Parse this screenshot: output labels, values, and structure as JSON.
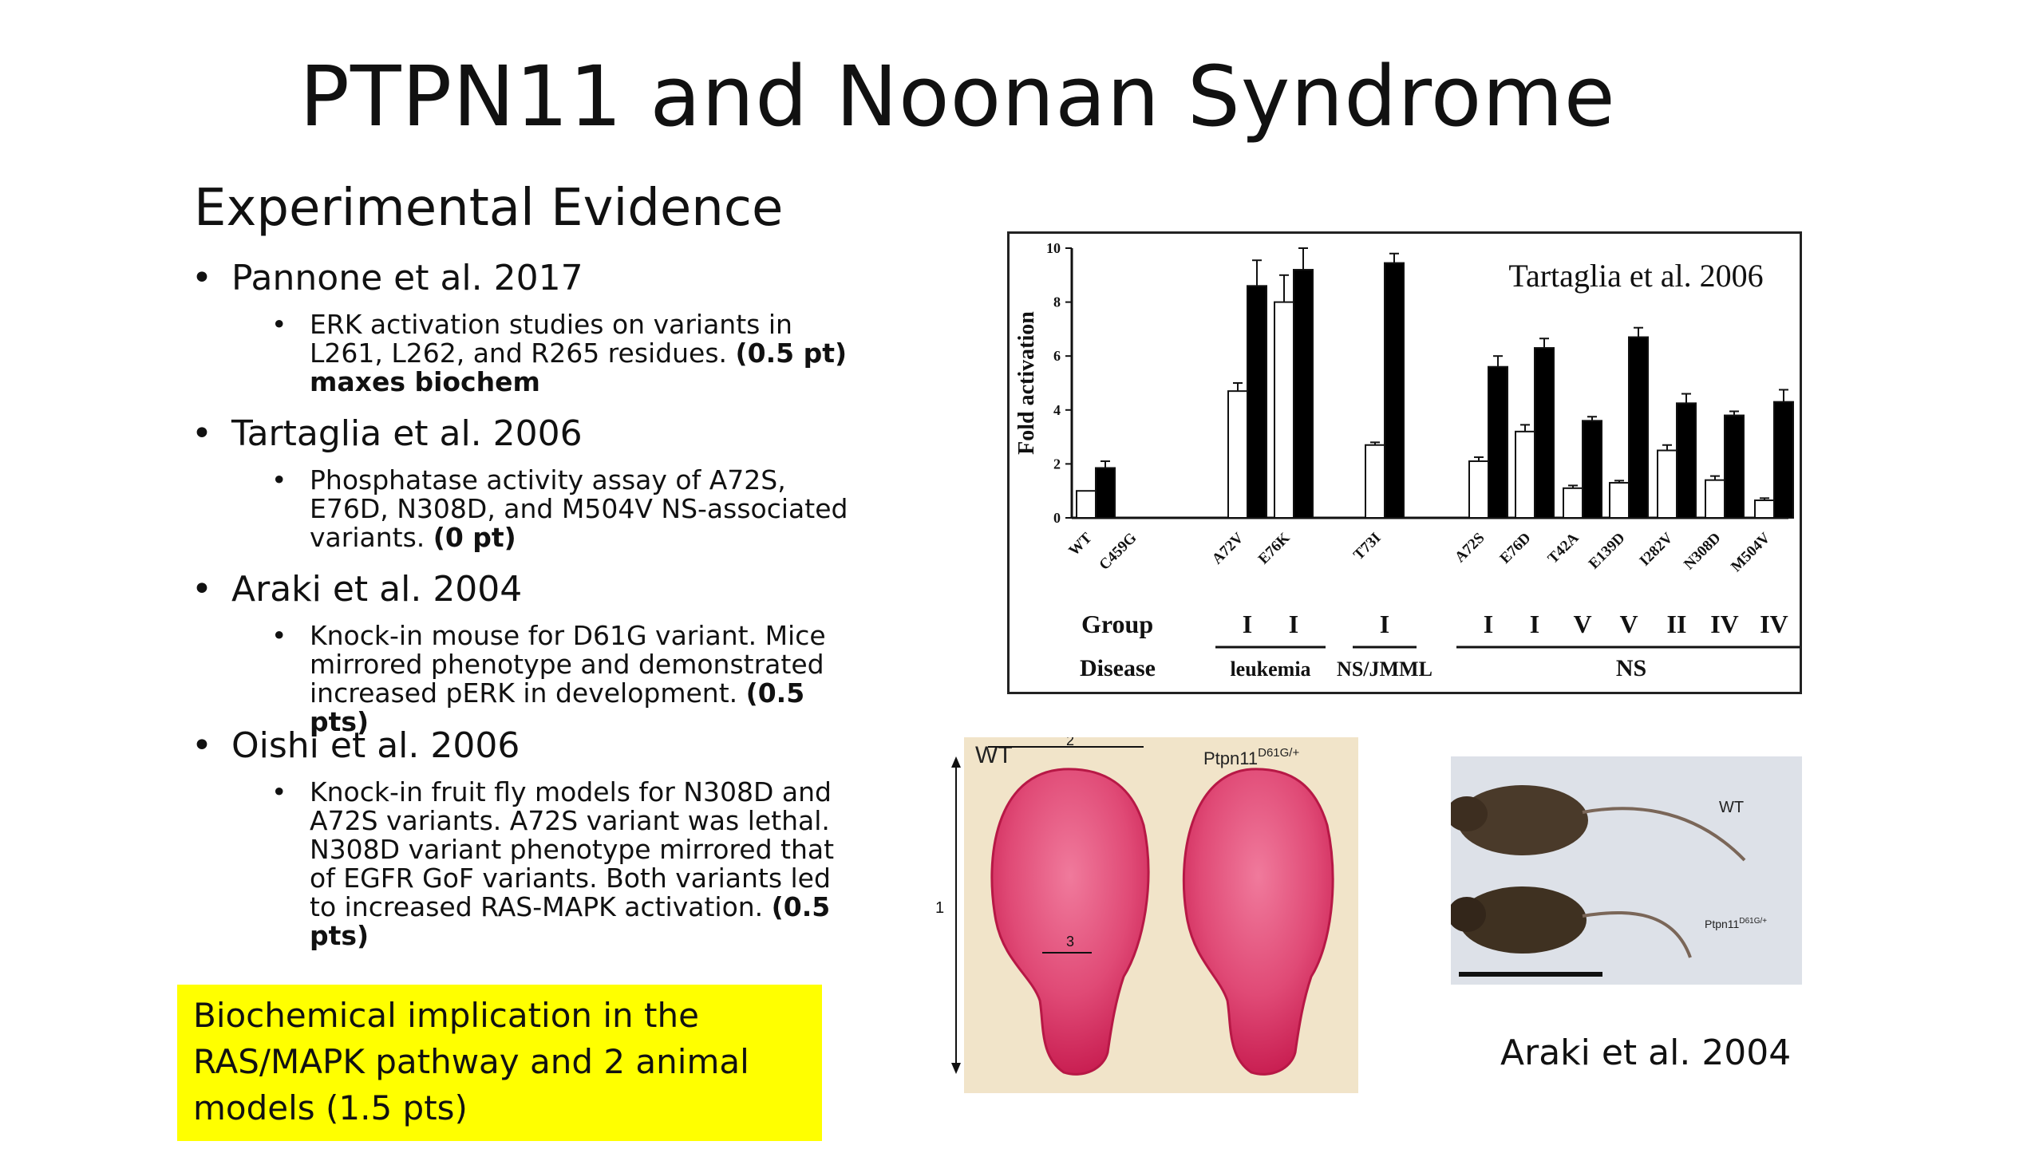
{
  "slide": {
    "title": "PTPN11 and Noonan Syndrome",
    "subtitle": "Experimental Evidence",
    "references": [
      {
        "name": "Pannone et al. 2017",
        "detail": "ERK activation studies on variants in L261, L262, and R265 residues.",
        "score": "(0.5 pt) maxes biochem"
      },
      {
        "name": "Tartaglia et al. 2006",
        "detail": "Phosphatase activity assay of A72S, E76D, N308D, and M504V NS-associated variants.",
        "score": "(0 pt)"
      },
      {
        "name": "Araki et al. 2004",
        "detail": "Knock-in mouse for D61G variant. Mice mirrored phenotype and demonstrated increased pERK in development.",
        "score": "(0.5 pts)"
      },
      {
        "name": "Oishi et al. 2006",
        "detail": "Knock-in fruit fly models for N308D and A72S variants. A72S variant was lethal. N308D variant phenotype mirrored that of EGFR GoF variants. Both variants led to increased RAS-MAPK activation.",
        "score": "(0.5 pts)"
      }
    ],
    "callout": "Biochemical implication in the RAS/MAPK pathway and 2 animal models (1.5 pts)",
    "callout_color": "#ffff00"
  },
  "figures": {
    "skull": {
      "label_wt": "WT",
      "label_mut": "Ptpn11",
      "label_mut_sup": "D61G/+",
      "dim1": "1",
      "dim2": "2",
      "dim3": "3"
    },
    "mouse": {
      "label_wt": "WT",
      "label_mut": "Ptpn11",
      "label_mut_sup": "D61G/+"
    },
    "araki_caption": "Araki et al. 2004"
  },
  "chart_data": {
    "type": "bar",
    "reference": "Tartaglia et al. 2006",
    "ylabel": "Fold activation",
    "ylim": [
      0,
      10
    ],
    "yticks": [
      "0",
      "2",
      "4",
      "6",
      "8",
      "10"
    ],
    "categories": [
      "WT",
      "C459G",
      "A72V",
      "E76K",
      "T73I",
      "A72S",
      "E76D",
      "T42A",
      "E139D",
      "I282V",
      "N308D",
      "M504V"
    ],
    "series": [
      {
        "values": [
          1.0,
          null,
          4.7,
          8.0,
          2.7,
          2.1,
          3.2,
          1.1,
          1.3,
          2.5,
          1.4,
          0.65
        ],
        "color": "#ffffff"
      },
      {
        "values": [
          1.85,
          null,
          8.6,
          9.2,
          9.45,
          5.6,
          6.3,
          3.6,
          6.7,
          4.25,
          3.8,
          4.3
        ],
        "color": "#000000"
      }
    ],
    "errors": [
      [
        0,
        null,
        0.3,
        1.0,
        0.1,
        0.15,
        0.25,
        0.1,
        0.08,
        0.2,
        0.15,
        0.08
      ],
      [
        0.25,
        null,
        0.95,
        0.8,
        0.35,
        0.4,
        0.35,
        0.15,
        0.35,
        0.35,
        0.15,
        0.45
      ]
    ],
    "group_label": "Group",
    "groups": [
      "",
      "",
      "I",
      "I",
      "I",
      "I",
      "I",
      "V",
      "V",
      "II",
      "IV",
      "IV"
    ],
    "disease_label": "Disease",
    "diseases": [
      {
        "label": "leukemia",
        "from": 2,
        "to": 3
      },
      {
        "label": "NS/JMML",
        "from": 4,
        "to": 4
      },
      {
        "label": "NS",
        "from": 5,
        "to": 11
      }
    ],
    "legend": null
  }
}
